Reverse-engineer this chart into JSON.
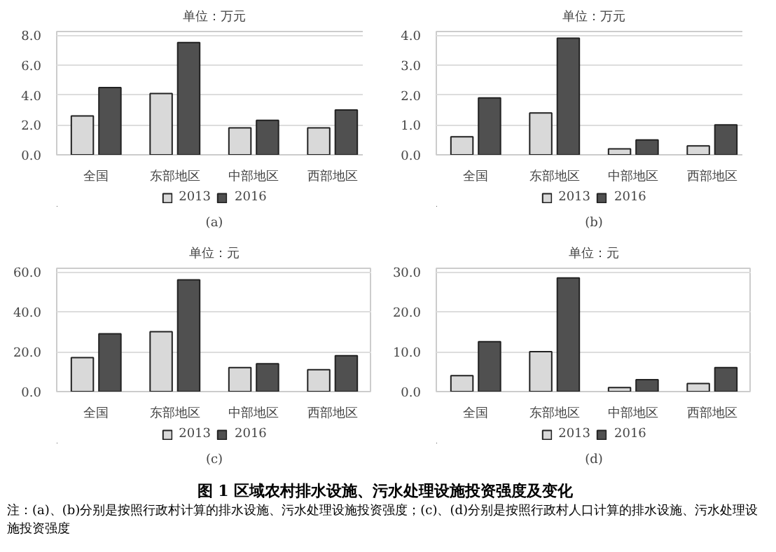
{
  "chart_data": [
    {
      "type": "bar",
      "title": "单位：万元",
      "xlabel": "(a)",
      "categories": [
        "全国",
        "东部地区",
        "中部地区",
        "西部地区"
      ],
      "ylim": [
        0,
        8
      ],
      "yticks": [
        {
          "value": 0,
          "label": "0.0"
        },
        {
          "value": 2,
          "label": "2.0"
        },
        {
          "value": 4,
          "label": "4.0"
        },
        {
          "value": 6,
          "label": "6.0"
        },
        {
          "value": 8,
          "label": "8.0"
        }
      ],
      "grid": "y",
      "legend": "bottom",
      "series": [
        {
          "name": "2013",
          "color": "#d9d9d9",
          "values": [
            2.6,
            4.1,
            1.8,
            1.8
          ]
        },
        {
          "name": "2016",
          "color": "#505050",
          "values": [
            4.5,
            7.5,
            2.3,
            3.0
          ]
        }
      ]
    },
    {
      "type": "bar",
      "title": "单位：万元",
      "xlabel": "(b)",
      "categories": [
        "全国",
        "东部地区",
        "中部地区",
        "西部地区"
      ],
      "ylim": [
        0,
        4
      ],
      "yticks": [
        {
          "value": 0,
          "label": "0.0"
        },
        {
          "value": 1,
          "label": "1.0"
        },
        {
          "value": 2,
          "label": "2.0"
        },
        {
          "value": 3,
          "label": "3.0"
        },
        {
          "value": 4,
          "label": "4.0"
        }
      ],
      "grid": "y",
      "legend": "bottom",
      "series": [
        {
          "name": "2013",
          "color": "#d9d9d9",
          "values": [
            0.6,
            1.4,
            0.2,
            0.3
          ]
        },
        {
          "name": "2016",
          "color": "#505050",
          "values": [
            1.9,
            3.9,
            0.5,
            1.0
          ]
        }
      ]
    },
    {
      "type": "bar",
      "title": "单位：元",
      "xlabel": "(c)",
      "categories": [
        "全国",
        "东部地区",
        "中部地区",
        "西部地区"
      ],
      "ylim": [
        0,
        60
      ],
      "yticks": [
        {
          "value": 0,
          "label": "0.0"
        },
        {
          "value": 20,
          "label": "20.0"
        },
        {
          "value": 40,
          "label": "40.0"
        },
        {
          "value": 60,
          "label": "60.0"
        }
      ],
      "grid": "y",
      "legend": "bottom",
      "series": [
        {
          "name": "2013",
          "color": "#d9d9d9",
          "values": [
            17,
            30,
            12,
            11
          ]
        },
        {
          "name": "2016",
          "color": "#505050",
          "values": [
            29,
            56,
            14,
            18
          ]
        }
      ]
    },
    {
      "type": "bar",
      "title": "单位：元",
      "xlabel": "(d)",
      "categories": [
        "全国",
        "东部地区",
        "中部地区",
        "西部地区"
      ],
      "ylim": [
        0,
        30
      ],
      "yticks": [
        {
          "value": 0,
          "label": "0.0"
        },
        {
          "value": 10,
          "label": "10.0"
        },
        {
          "value": 20,
          "label": "20.0"
        },
        {
          "value": 30,
          "label": "30.0"
        }
      ],
      "grid": "y",
      "legend": "bottom",
      "series": [
        {
          "name": "2013",
          "color": "#d9d9d9",
          "values": [
            4,
            10,
            1,
            2
          ]
        },
        {
          "name": "2016",
          "color": "#505050",
          "values": [
            12.5,
            28.5,
            3,
            6
          ]
        }
      ],
      "annotations": [
        "图 1  区域农村排水设施、污水处理设施投资强度及变化",
        "注：(a)、(b)分别是按照行政村计算的排水设施、污水处理设施投资强度；(c)、(d)分别是按照行政村人口计算的排水设施、污水处理设施投资强度"
      ]
    }
  ]
}
